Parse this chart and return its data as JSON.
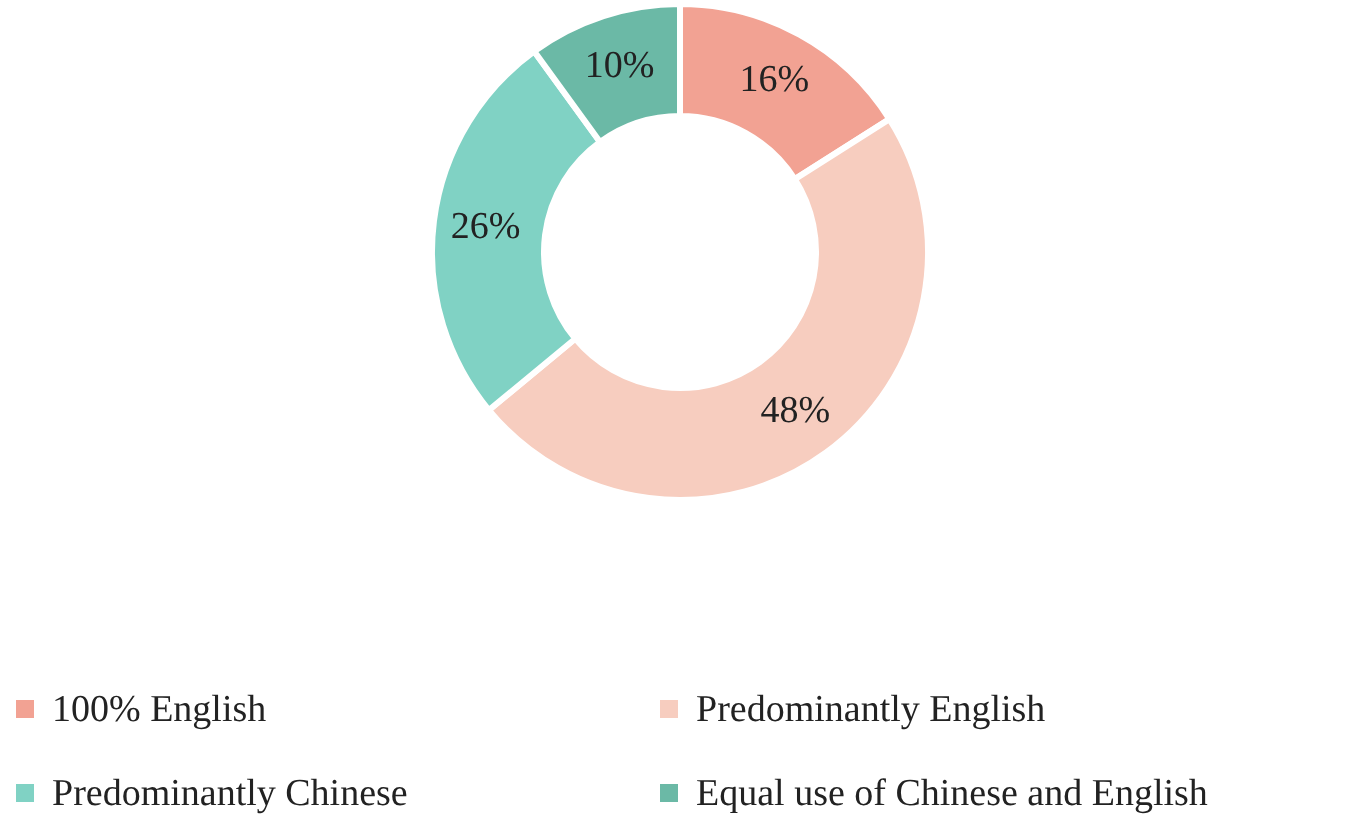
{
  "chart_data": {
    "type": "donut",
    "categories": [
      "100% English",
      "Predominantly English",
      "Predominantly Chinese",
      "Equal use of Chinese and English"
    ],
    "values": [
      16,
      48,
      26,
      10
    ],
    "colors": [
      "#f2a293",
      "#f7cdbf",
      "#80d2c4",
      "#6bb9a6"
    ],
    "value_labels": [
      "16%",
      "48%",
      "26%",
      "10%"
    ],
    "legend": "bottom"
  }
}
